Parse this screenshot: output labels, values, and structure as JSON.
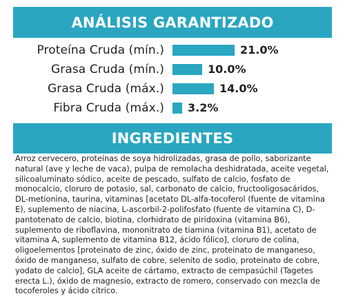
{
  "analysis": {
    "title": "ANÁLISIS GARANTIZADO",
    "rows": [
      {
        "label": "Proteína Cruda (mín.)",
        "value_text": "21.0%",
        "percent": 21.0
      },
      {
        "label": "Grasa Cruda (mín.)",
        "value_text": "10.0%",
        "percent": 10.0
      },
      {
        "label": "Grasa Cruda (máx.)",
        "value_text": "14.0%",
        "percent": 14.0
      },
      {
        "label": "Fibra Cruda (máx.)",
        "value_text": "3.2%",
        "percent": 3.2
      }
    ]
  },
  "ingredients": {
    "title": "INGREDIENTES",
    "text": "Arroz cervecero, proteínas de soya hidrolizadas, grasa de pollo, saborizante natural (ave y leche de vaca), pulpa de remolacha deshidratada, aceite vegetal, silicoaluminato sódico, aceite de pescado, sulfato de calcio, fosfato de monocalcio, cloruro de potasio, sal, carbonato de calcio, fructooligosacáridos, DL-metionina, taurina, vitaminas [acetato DL-alfa-tocoferol (fuente de vitamina E), suplemento de niacina, L-ascorbil-2-polifosfato (fuente de vitamina C), D-pantotenato de calcio, biotina, clorhidrato de piridoxina (vitamina B6), suplemento de riboflavina, mononitrato de tiamina (vitamina B1), acetato de vitamina A, suplemento de vitamina B12, ácido fólico], cloruro de colina, oligoelementos [proteinato de zinc, óxido de zinc, proteinato de manganeso, óxido de manganeso, sulfato de cobre, selenito de sodio, proteinato de cobre, yodato de calcio], GLA aceite de cártamo, extracto de cempasúchil (Tagetes erecta L.), óxido de magnesio, extracto de romero, conservado con mezcla de tocoferoles y ácido cítrico."
  },
  "colors": {
    "accent": "#2aa6c0",
    "text": "#231f20"
  }
}
